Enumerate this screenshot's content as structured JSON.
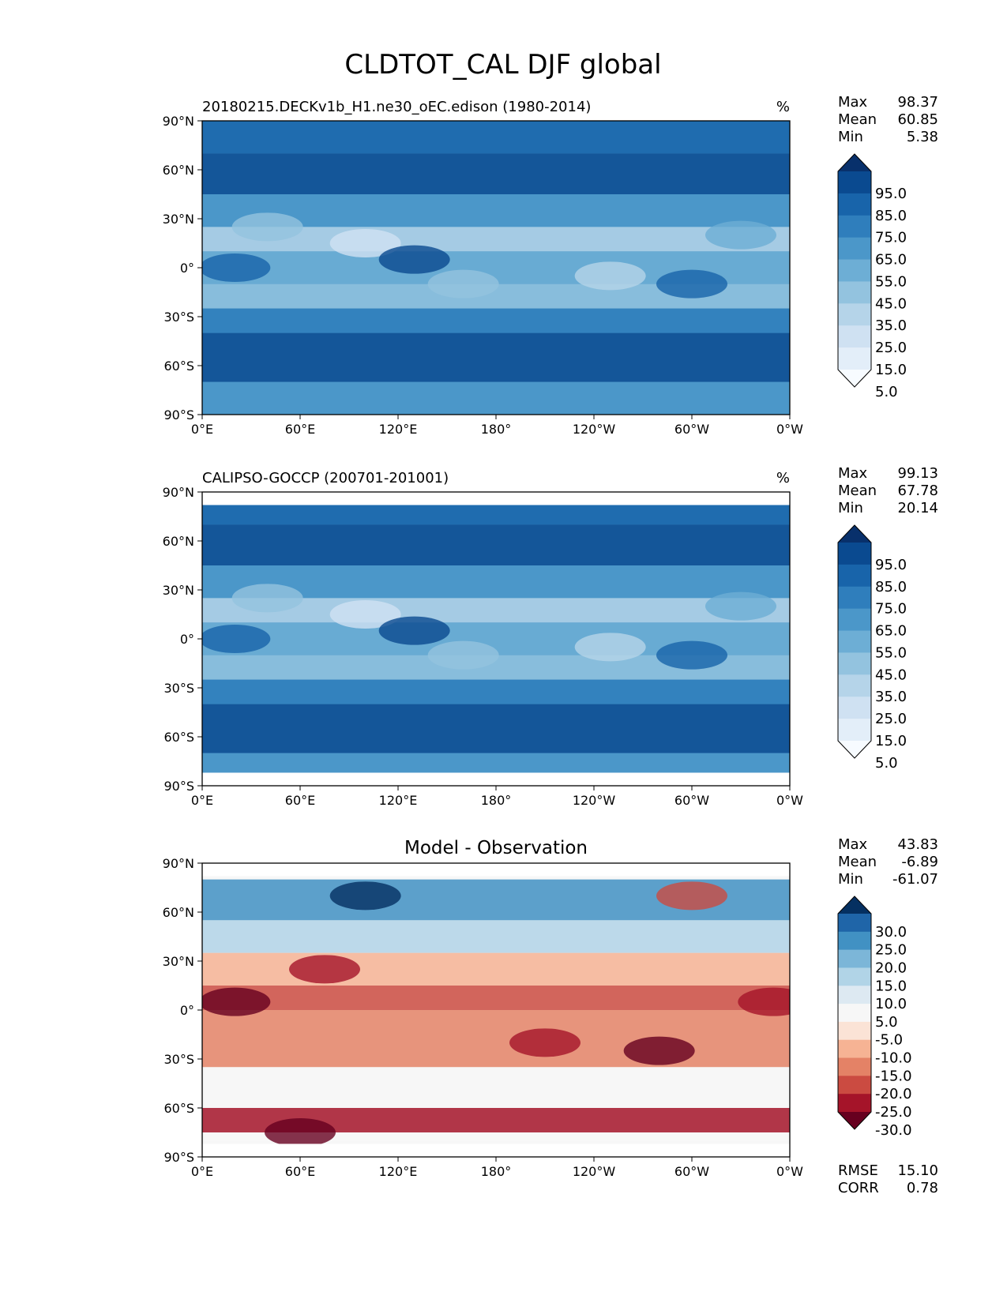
{
  "figure": {
    "title": "CLDTOT_CAL DJF global"
  },
  "lon_ticks": [
    "0°E",
    "60°E",
    "120°E",
    "180°",
    "120°W",
    "60°W",
    "0°W"
  ],
  "lat_ticks": [
    "90°N",
    "60°N",
    "30°N",
    "0°",
    "30°S",
    "60°S",
    "90°S"
  ],
  "colors": {
    "blues": [
      "#f7fbff",
      "#e3eef9",
      "#cfe1f2",
      "#b5d4e9",
      "#93c3df",
      "#6daed5",
      "#4b97c9",
      "#2f7ebc",
      "#1864aa",
      "#0a4a90",
      "#08306b"
    ],
    "diverging": [
      "#67001f",
      "#a51429",
      "#cb4b41",
      "#e48266",
      "#f6b394",
      "#fbe3d6",
      "#f7f7f7",
      "#dde9f2",
      "#b1d4e7",
      "#7cb6d8",
      "#4191c3",
      "#1f65a8",
      "#053061"
    ]
  },
  "chart_data": [
    {
      "type": "heatmap",
      "title": "20180215.DECKv1b_H1.ne30_oEC.edison (1980-2014)",
      "units": "%",
      "stats": [
        {
          "label": "Max",
          "value": "98.37"
        },
        {
          "label": "Mean",
          "value": "60.85"
        },
        {
          "label": "Min",
          "value": "5.38"
        }
      ],
      "colorbar": {
        "ticks": [
          "95.0",
          "85.0",
          "75.0",
          "65.0",
          "55.0",
          "45.0",
          "35.0",
          "25.0",
          "15.0",
          "5.0"
        ],
        "extend": "both",
        "palette": "blues"
      },
      "xlim": [
        0,
        360
      ],
      "ylim": [
        -90,
        90
      ],
      "grid": false
    },
    {
      "type": "heatmap",
      "title": "CALIPSO-GOCCP (200701-201001)",
      "units": "%",
      "stats": [
        {
          "label": "Max",
          "value": "99.13"
        },
        {
          "label": "Mean",
          "value": "67.78"
        },
        {
          "label": "Min",
          "value": "20.14"
        }
      ],
      "colorbar": {
        "ticks": [
          "95.0",
          "85.0",
          "75.0",
          "65.0",
          "55.0",
          "45.0",
          "35.0",
          "25.0",
          "15.0",
          "5.0"
        ],
        "extend": "both",
        "palette": "blues"
      },
      "xlim": [
        0,
        360
      ],
      "ylim": [
        -90,
        90
      ],
      "grid": false
    },
    {
      "type": "heatmap",
      "title": "Model - Observation",
      "units": "",
      "stats": [
        {
          "label": "Max",
          "value": "43.83"
        },
        {
          "label": "Mean",
          "value": "-6.89"
        },
        {
          "label": "Min",
          "value": "-61.07"
        }
      ],
      "colorbar": {
        "ticks": [
          "30.0",
          "25.0",
          "20.0",
          "15.0",
          "10.0",
          "5.0",
          "-5.0",
          "-10.0",
          "-15.0",
          "-20.0",
          "-25.0",
          "-30.0"
        ],
        "extend": "both",
        "palette": "diverging"
      },
      "metrics": [
        {
          "label": "RMSE",
          "value": "15.10"
        },
        {
          "label": "CORR",
          "value": "0.78"
        }
      ],
      "xlim": [
        0,
        360
      ],
      "ylim": [
        -90,
        90
      ],
      "grid": false
    }
  ]
}
